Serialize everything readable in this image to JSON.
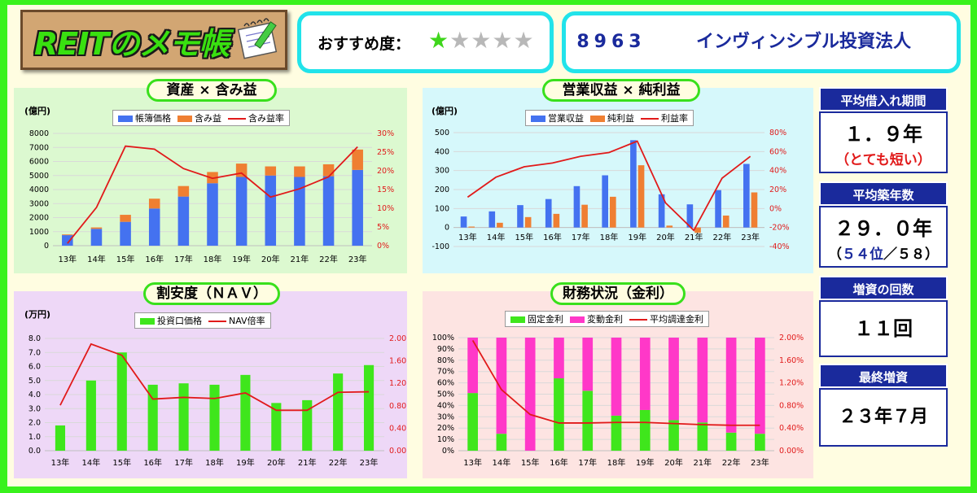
{
  "header": {
    "logo_text": "REITのメモ帳",
    "rating_label": "おすすめ度：",
    "rating": 1,
    "rating_max": 5,
    "code": "8963",
    "name": "インヴィンシブル投資法人"
  },
  "colors": {
    "blue": "#4472f0",
    "orange": "#ef7f32",
    "red": "#e11a1a",
    "green": "#3fe61c",
    "pink": "#ff38c8",
    "panel_green": "#dcf9d0",
    "panel_cyan": "#d6f8fb",
    "panel_purple": "#eed8f7",
    "panel_pink": "#fde4e2",
    "accent_navy": "#1a2a9c"
  },
  "side": {
    "loan_title": "平均借入れ期間",
    "loan_value": "１．９年",
    "loan_note": "（とても短い）",
    "age_title": "平均築年数",
    "age_value": "２９．０年",
    "age_note_open": "（",
    "age_rank": "５４位",
    "age_note_rest": "／５８）",
    "increase_title": "増資の回数",
    "increase_value": "１１回",
    "last_title": "最終増資",
    "last_value": "２３年７月"
  },
  "chart_data": [
    {
      "type": "bar",
      "title": "資産 × 含み益",
      "unit": "(億円)",
      "categories": [
        "13年",
        "14年",
        "15年",
        "16年",
        "17年",
        "18年",
        "19年",
        "20年",
        "21年",
        "22年",
        "23年"
      ],
      "series": [
        {
          "name": "帳簿価格",
          "values": [
            750,
            1200,
            1700,
            2650,
            3500,
            4450,
            4900,
            5000,
            4900,
            4950,
            5400
          ]
        },
        {
          "name": "含み益",
          "values": [
            50,
            100,
            500,
            700,
            750,
            800,
            950,
            650,
            750,
            850,
            1450
          ]
        },
        {
          "name": "含み益率",
          "values": [
            0.6,
            10.2,
            26.6,
            25.8,
            20.6,
            18.0,
            19.4,
            13.0,
            15.2,
            18.4,
            26.4
          ]
        }
      ],
      "y_ticks": [
        "0",
        "1000",
        "2000",
        "3000",
        "4000",
        "5000",
        "6000",
        "7000",
        "8000"
      ],
      "y2_ticks": [
        "0%",
        "5%",
        "10%",
        "15%",
        "20%",
        "25%",
        "30%"
      ],
      "ylim": [
        0,
        8000
      ],
      "y2lim": [
        0,
        30
      ]
    },
    {
      "type": "bar",
      "title": "営業収益 × 純利益",
      "unit": "(億円)",
      "categories": [
        "13年",
        "14年",
        "15年",
        "16年",
        "17年",
        "18年",
        "19年",
        "20年",
        "21年",
        "22年",
        "23年"
      ],
      "series": [
        {
          "name": "営業収益",
          "values": [
            58,
            85,
            118,
            150,
            218,
            275,
            460,
            175,
            122,
            197,
            335
          ]
        },
        {
          "name": "純利益",
          "values": [
            5,
            25,
            55,
            72,
            120,
            162,
            328,
            10,
            -28,
            63,
            185
          ]
        },
        {
          "name": "利益率",
          "values": [
            12,
            33,
            44,
            48,
            55,
            59,
            71,
            6,
            -23,
            32,
            55
          ]
        }
      ],
      "y_ticks": [
        "-100",
        "0",
        "100",
        "200",
        "300",
        "400",
        "500"
      ],
      "y2_ticks": [
        "-40%",
        "-20%",
        "0%",
        "20%",
        "40%",
        "60%",
        "80%"
      ],
      "ylim": [
        -100,
        500
      ],
      "y2lim": [
        -40,
        80
      ]
    },
    {
      "type": "bar",
      "title": "割安度（ＮＡＶ）",
      "unit": "(万円)",
      "categories": [
        "13年",
        "14年",
        "15年",
        "16年",
        "17年",
        "18年",
        "19年",
        "20年",
        "21年",
        "22年",
        "23年"
      ],
      "series": [
        {
          "name": "投資口価格",
          "values": [
            1.8,
            5.0,
            7.0,
            4.7,
            4.8,
            4.7,
            5.4,
            3.4,
            3.6,
            5.5,
            6.1
          ]
        },
        {
          "name": "NAV倍率",
          "values": [
            0.81,
            1.9,
            1.7,
            0.92,
            0.95,
            0.93,
            1.03,
            0.72,
            0.72,
            1.04,
            1.05
          ]
        }
      ],
      "y_ticks": [
        "0.0",
        "1.0",
        "2.0",
        "3.0",
        "4.0",
        "5.0",
        "6.0",
        "7.0",
        "8.0"
      ],
      "y2_ticks": [
        "0.00",
        "0.40",
        "0.80",
        "1.20",
        "1.60",
        "2.00"
      ],
      "ylim": [
        0,
        8
      ],
      "y2lim": [
        0,
        2
      ]
    },
    {
      "type": "bar",
      "title": "財務状況（金利）",
      "unit": "",
      "categories": [
        "13年",
        "14年",
        "15年",
        "16年",
        "17年",
        "18年",
        "19年",
        "20年",
        "21年",
        "22年",
        "23年"
      ],
      "series": [
        {
          "name": "固定金利",
          "values": [
            51,
            15,
            0,
            64,
            53,
            31,
            36,
            27,
            25,
            16,
            15
          ]
        },
        {
          "name": "変動金利",
          "values": [
            49,
            85,
            100,
            36,
            47,
            69,
            64,
            73,
            75,
            84,
            85
          ]
        },
        {
          "name": "平均調達金利",
          "values": [
            1.95,
            1.08,
            0.64,
            0.49,
            0.49,
            0.5,
            0.5,
            0.48,
            0.46,
            0.45,
            0.45
          ]
        }
      ],
      "y_ticks": [
        "0%",
        "10%",
        "20%",
        "30%",
        "40%",
        "50%",
        "60%",
        "70%",
        "80%",
        "90%",
        "100%"
      ],
      "y2_ticks": [
        "0.00%",
        "0.40%",
        "0.80%",
        "1.20%",
        "1.60%",
        "2.00%"
      ],
      "ylim": [
        0,
        100
      ],
      "y2lim": [
        0,
        2
      ]
    }
  ]
}
